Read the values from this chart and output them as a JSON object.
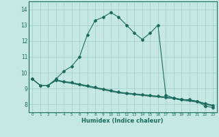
{
  "xlabel": "Humidex (Indice chaleur)",
  "xlim": [
    -0.5,
    23.5
  ],
  "ylim": [
    7.5,
    14.5
  ],
  "yticks": [
    8,
    9,
    10,
    11,
    12,
    13,
    14
  ],
  "xticks": [
    0,
    1,
    2,
    3,
    4,
    5,
    6,
    7,
    8,
    9,
    10,
    11,
    12,
    13,
    14,
    15,
    16,
    17,
    18,
    19,
    20,
    21,
    22,
    23
  ],
  "bg_color": "#c5e8e5",
  "grid_color": "#a8d0cc",
  "line_color": "#1a6b5e",
  "line1_x": [
    0,
    1,
    2,
    3,
    4,
    5,
    6,
    7,
    8,
    9,
    10,
    11,
    12,
    13,
    14,
    15,
    16,
    17,
    18,
    19,
    20,
    21,
    22,
    23
  ],
  "line1_y": [
    9.6,
    9.2,
    9.2,
    9.6,
    10.1,
    10.4,
    11.0,
    12.4,
    13.3,
    13.5,
    13.8,
    13.5,
    13.0,
    12.5,
    12.1,
    12.5,
    13.0,
    8.6,
    8.4,
    8.3,
    8.3,
    8.2,
    7.9,
    7.8
  ],
  "line2_x": [
    0,
    1,
    2,
    3,
    4,
    5,
    6,
    7,
    8,
    9,
    10,
    11,
    12,
    13,
    14,
    15,
    16,
    17,
    18,
    19,
    20,
    21,
    22,
    23
  ],
  "line2_y": [
    9.6,
    9.2,
    9.2,
    9.55,
    9.45,
    9.38,
    9.28,
    9.18,
    9.08,
    8.98,
    8.88,
    8.78,
    8.72,
    8.67,
    8.62,
    8.57,
    8.52,
    8.47,
    8.42,
    8.32,
    8.27,
    8.2,
    8.07,
    7.95
  ],
  "line3_x": [
    0,
    1,
    2,
    3,
    4,
    5,
    6,
    7,
    8,
    9,
    10,
    11,
    12,
    13,
    14,
    15,
    16,
    17,
    18,
    19,
    20,
    21,
    22,
    23
  ],
  "line3_y": [
    9.6,
    9.2,
    9.2,
    9.52,
    9.42,
    9.35,
    9.25,
    9.15,
    9.05,
    8.95,
    8.85,
    8.75,
    8.69,
    8.64,
    8.59,
    8.54,
    8.49,
    8.44,
    8.39,
    8.29,
    8.24,
    8.17,
    8.04,
    7.92
  ],
  "line4_x": [
    0,
    1,
    2,
    3,
    4,
    5,
    6,
    7,
    8,
    9,
    10,
    11,
    12,
    13,
    14,
    15,
    16,
    17,
    18,
    19,
    20,
    21,
    22,
    23
  ],
  "line4_y": [
    9.6,
    9.2,
    9.2,
    9.5,
    9.4,
    9.32,
    9.22,
    9.12,
    9.02,
    8.92,
    8.82,
    8.72,
    8.66,
    8.61,
    8.56,
    8.51,
    8.46,
    8.41,
    8.36,
    8.26,
    8.21,
    8.14,
    8.01,
    7.89
  ]
}
